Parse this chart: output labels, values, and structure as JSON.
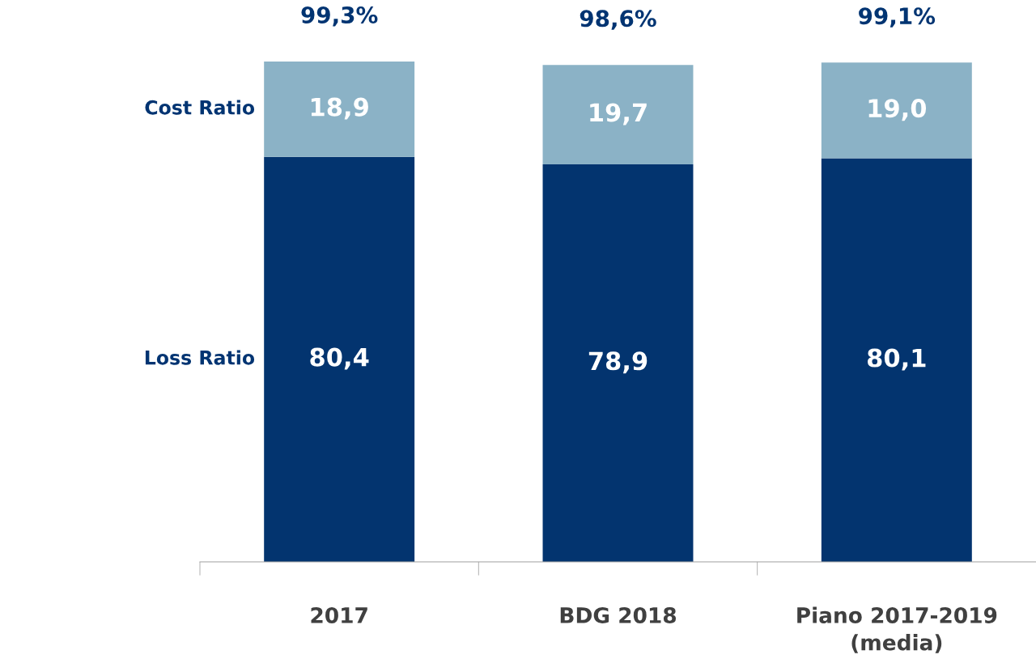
{
  "chart_data": {
    "type": "bar",
    "stacked": true,
    "categories": [
      "2017",
      "BDG 2018",
      "Piano 2017-2019\n(media)"
    ],
    "series": [
      {
        "name": "Loss Ratio",
        "color": "#03346f",
        "values": [
          80.4,
          78.9,
          80.1
        ],
        "value_labels": [
          "80,4",
          "78,9",
          "80,1"
        ]
      },
      {
        "name": "Cost Ratio",
        "color": "#8bb2c6",
        "values": [
          18.9,
          19.7,
          19.0
        ],
        "value_labels": [
          "18,9",
          "19,7",
          "19,0"
        ]
      }
    ],
    "totals": [
      "99,3%",
      "98,6%",
      "99,1%"
    ],
    "tick_labels": "x",
    "grid": false
  }
}
